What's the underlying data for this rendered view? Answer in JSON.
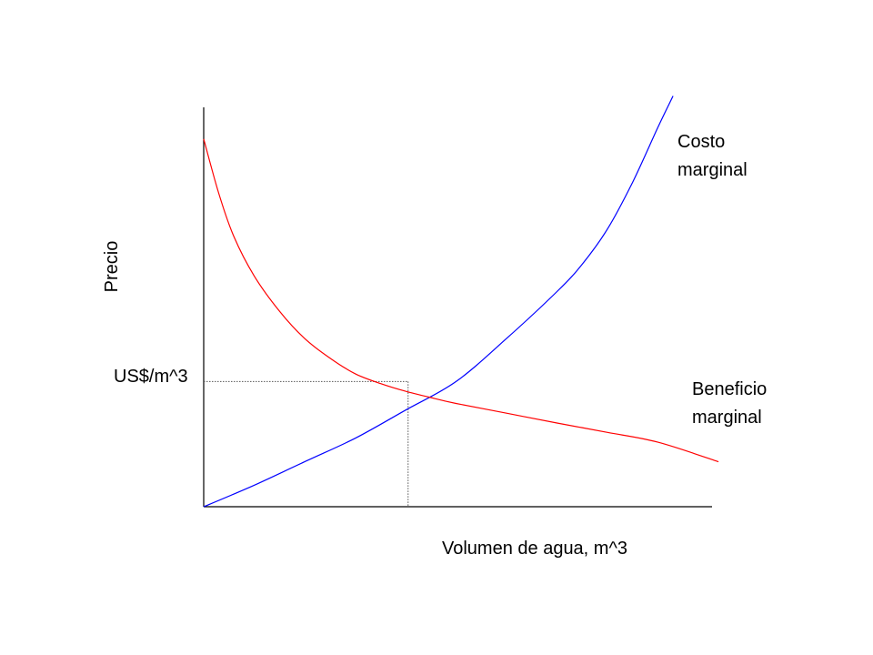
{
  "chart_data": {
    "type": "line",
    "title": "",
    "xlabel": "Volumen de agua, m^3",
    "ylabel": "Precio",
    "equilibrium_price_label": "US$/m^3",
    "grid": false,
    "series": [
      {
        "name_lines": [
          "Costo",
          "marginal"
        ],
        "color": "#0000ff",
        "points": [
          [
            0.0,
            0.0
          ],
          [
            0.1,
            0.055
          ],
          [
            0.2,
            0.115
          ],
          [
            0.3,
            0.175
          ],
          [
            0.4,
            0.247
          ],
          [
            0.5,
            0.32
          ],
          [
            0.6,
            0.43
          ],
          [
            0.7,
            0.55
          ],
          [
            0.75,
            0.62
          ],
          [
            0.8,
            0.71
          ],
          [
            0.85,
            0.83
          ],
          [
            0.9,
            0.97
          ],
          [
            0.93,
            1.05
          ]
        ]
      },
      {
        "name_lines": [
          "Beneficio",
          "marginal"
        ],
        "color": "#ff0000",
        "points": [
          [
            0.0,
            0.94
          ],
          [
            0.03,
            0.8
          ],
          [
            0.06,
            0.69
          ],
          [
            0.1,
            0.59
          ],
          [
            0.15,
            0.5
          ],
          [
            0.2,
            0.43
          ],
          [
            0.25,
            0.38
          ],
          [
            0.3,
            0.34
          ],
          [
            0.35,
            0.315
          ],
          [
            0.4,
            0.295
          ],
          [
            0.45,
            0.279
          ],
          [
            0.5,
            0.264
          ],
          [
            0.6,
            0.239
          ],
          [
            0.7,
            0.214
          ],
          [
            0.8,
            0.19
          ],
          [
            0.9,
            0.165
          ],
          [
            1.02,
            0.115
          ]
        ]
      }
    ],
    "equilibrium": {
      "x": 0.405,
      "y": 0.32
    }
  }
}
